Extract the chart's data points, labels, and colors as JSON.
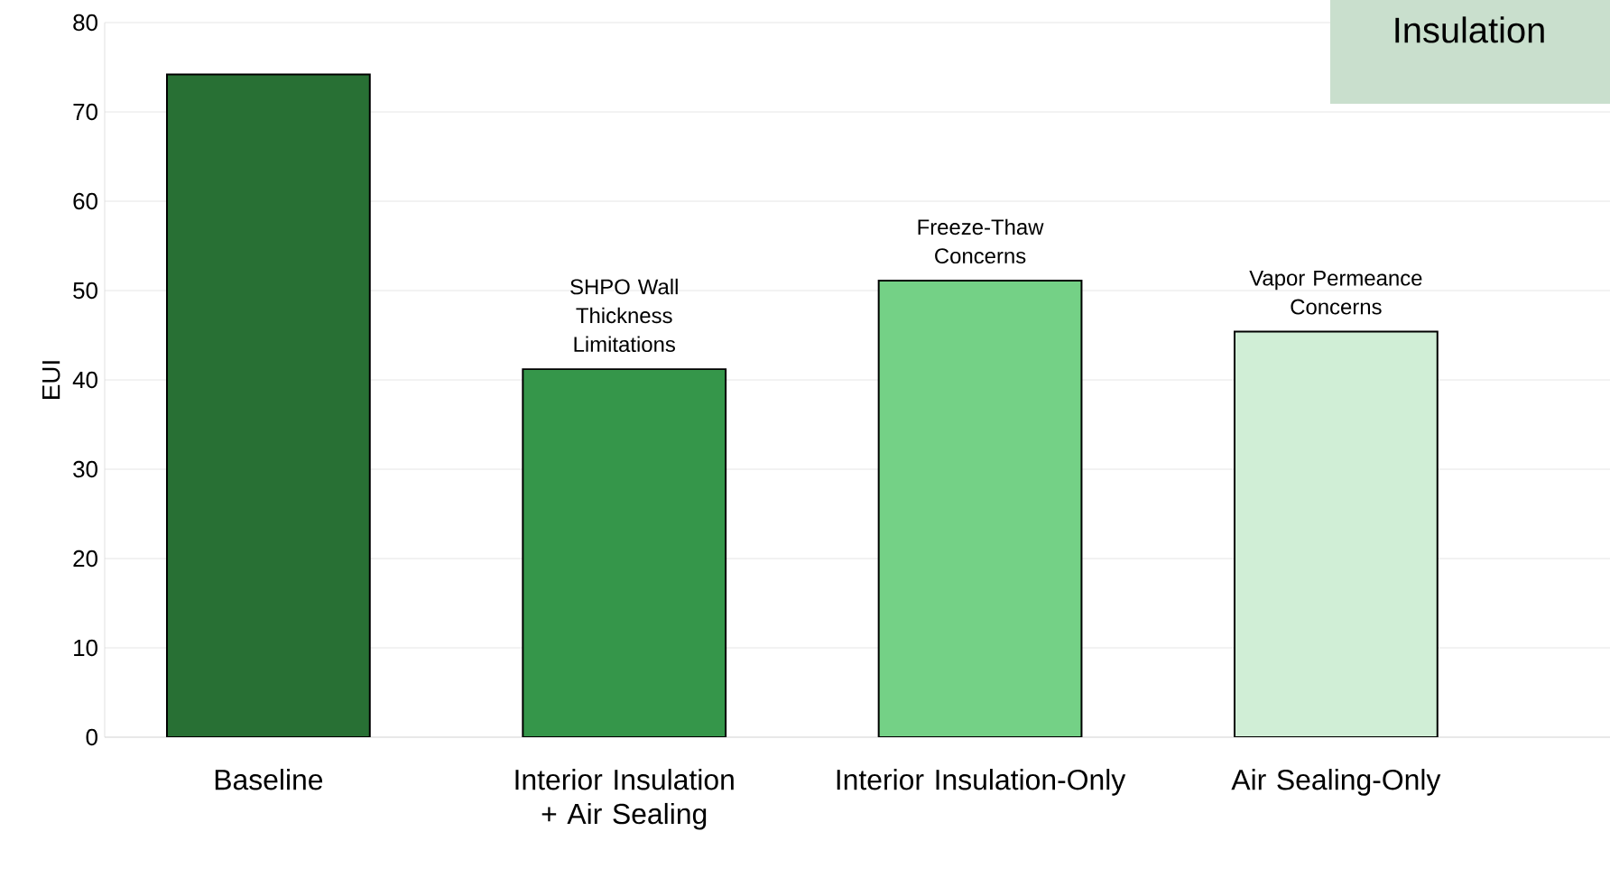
{
  "chart_data": {
    "type": "bar",
    "ylabel": "EUI",
    "categories": [
      "Baseline",
      "Interior Insulation + Air Sealing",
      "Interior Insulation-Only",
      "Air Sealing-Only"
    ],
    "values": [
      74.2,
      41.2,
      51.1,
      45.4
    ],
    "colors": [
      "#287034",
      "#35964a",
      "#74d186",
      "#d0eed6"
    ],
    "ylim": [
      0,
      80
    ],
    "yticks": [
      0,
      10,
      20,
      30,
      40,
      50,
      60,
      70,
      80
    ],
    "grid": "y",
    "annotations": [
      {
        "text": "SHPO Wall Thickness Limitations",
        "x": "Interior Insulation + Air Sealing",
        "y": 41.2
      },
      {
        "text": "Freeze-Thaw Concerns",
        "x": "Interior Insulation-Only",
        "y": 51.1
      },
      {
        "text": "Vapor Permeance Concerns",
        "x": "Air Sealing-Only",
        "y": 45.4
      },
      "Insulation"
    ]
  }
}
